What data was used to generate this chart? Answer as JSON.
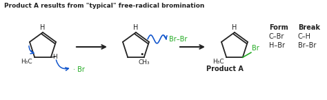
{
  "title": "Product A results from \"typical\" free-radical bromination",
  "bg_color": "#ffffff",
  "black": "#222222",
  "green": "#22aa22",
  "blue": "#1155cc",
  "table_headers": [
    "Form",
    "Break"
  ],
  "table_rows": [
    [
      "C–Br",
      "C–H"
    ],
    [
      "H–Br",
      "Br–Br"
    ]
  ],
  "product_label": "Product A",
  "figsize": [
    4.74,
    1.45
  ],
  "dpi": 100
}
